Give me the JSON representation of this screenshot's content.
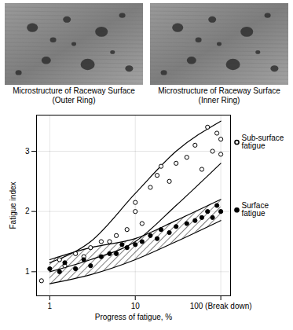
{
  "images": [
    {
      "caption": "Microstructure of Raceway Surface (Outer Ring)"
    },
    {
      "caption": "Microstructure of Raceway Surface (Inner Ring)"
    }
  ],
  "chart_data": {
    "type": "scatter",
    "xlabel": "Progress of fatigue, %",
    "ylabel": "Fatigue index",
    "log": "x",
    "grid": true,
    "xlim": [
      0.7,
      130
    ],
    "xticks": [
      1,
      10,
      {
        "value": 100,
        "label": "100 (Break down)"
      }
    ],
    "ylim": [
      0.6,
      3.6
    ],
    "yticks": [
      1,
      2,
      3
    ],
    "series": [
      {
        "name": "Sub-surface fatigue",
        "marker": "open circle",
        "color": "#000000",
        "line_style": "solid",
        "x": [
          0.8,
          1.3,
          1.5,
          2,
          2.5,
          3,
          4,
          5,
          6,
          8,
          10,
          10,
          12,
          15,
          18,
          20,
          25,
          30,
          40,
          50,
          60,
          70,
          80,
          90,
          100,
          100
        ],
        "values": [
          0.85,
          1.2,
          1.1,
          1.3,
          1.25,
          1.4,
          1.5,
          1.5,
          1.6,
          1.7,
          2.0,
          2.15,
          1.8,
          2.4,
          2.6,
          2.75,
          2.5,
          2.8,
          2.9,
          3.1,
          2.7,
          3.4,
          3.0,
          3.3,
          2.95,
          3.2
        ],
        "band": {
          "x": [
            1,
            3,
            10,
            30,
            100
          ],
          "upper": [
            1.15,
            1.5,
            2.3,
            3.0,
            3.5
          ],
          "lower": [
            1.0,
            1.2,
            1.5,
            2.1,
            2.8
          ]
        }
      },
      {
        "name": "Surface fatigue",
        "marker": "filled circle",
        "color": "#000000",
        "line_style": "hatched",
        "x": [
          1,
          1.3,
          1.5,
          2,
          2.5,
          3,
          4,
          5,
          6,
          7,
          8,
          10,
          12,
          15,
          18,
          20,
          25,
          30,
          40,
          50,
          60,
          70,
          80,
          90,
          100
        ],
        "values": [
          1.05,
          1.0,
          1.15,
          1.05,
          1.2,
          1.1,
          1.25,
          1.3,
          1.3,
          1.45,
          1.4,
          1.45,
          1.5,
          1.6,
          1.55,
          1.7,
          1.65,
          1.75,
          1.8,
          1.85,
          1.9,
          2.0,
          1.9,
          2.1,
          2.0
        ],
        "band": {
          "x": [
            1,
            3,
            10,
            30,
            100
          ],
          "upper": [
            1.2,
            1.4,
            1.55,
            1.85,
            2.2
          ],
          "lower": [
            0.8,
            0.95,
            1.2,
            1.5,
            1.85
          ]
        }
      }
    ]
  }
}
